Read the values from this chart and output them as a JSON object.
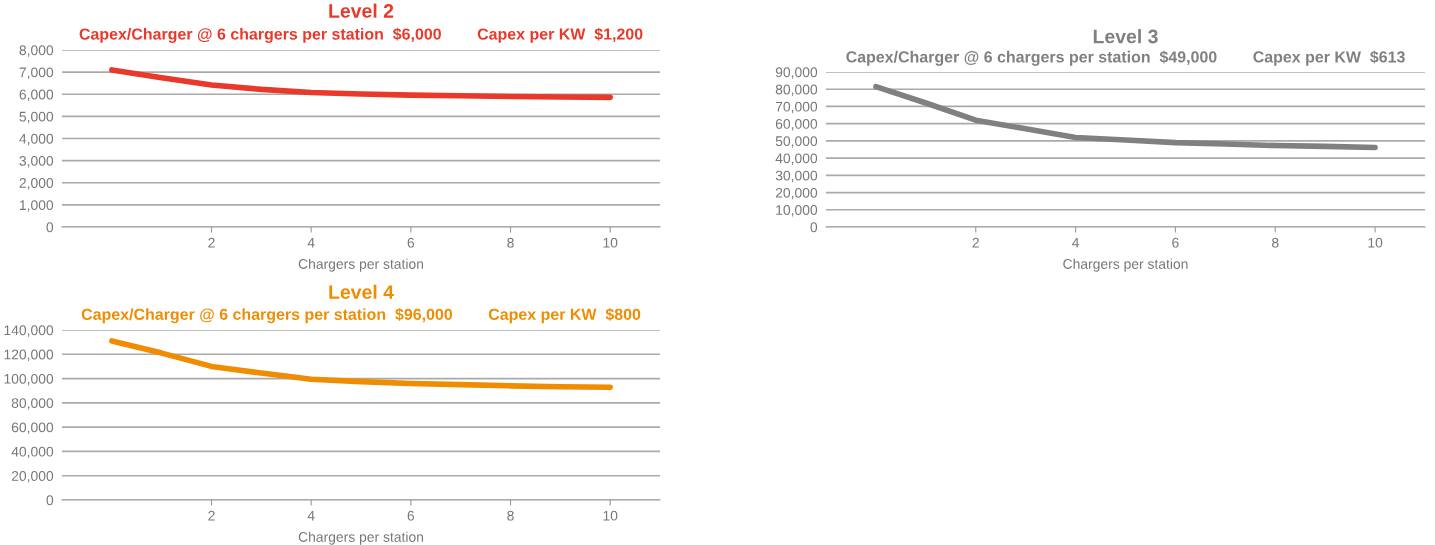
{
  "chart_data": [
    {
      "type": "line",
      "title": "Level 2",
      "subtitle": "Capex/Charger @ 6 chargers per station  $6,000        Capex per KW  $1,200",
      "xlabel": "Chargers per station",
      "x": [
        0,
        1,
        2,
        3,
        4,
        5,
        6,
        7,
        8,
        9,
        10
      ],
      "xlim": [
        -1,
        11
      ],
      "xticks": [
        2,
        4,
        6,
        8,
        10
      ],
      "ylim": [
        0,
        8000
      ],
      "yticks": [
        {
          "value": 0,
          "label": "0"
        },
        {
          "value": 1000,
          "label": "1,000"
        },
        {
          "value": 2000,
          "label": "2,000"
        },
        {
          "value": 3000,
          "label": "3,000"
        },
        {
          "value": 4000,
          "label": "4,000"
        },
        {
          "value": 5000,
          "label": "5,000"
        },
        {
          "value": 6000,
          "label": "6,000"
        },
        {
          "value": 7000,
          "label": "7,000"
        },
        {
          "value": 8000,
          "label": "8,000"
        }
      ],
      "grid": "y",
      "series": [
        {
          "color": "#e8392b",
          "values": [
            7100,
            6750,
            6420,
            6220,
            6080,
            6010,
            5960,
            5930,
            5900,
            5880,
            5860
          ]
        }
      ]
    },
    {
      "type": "line",
      "title": "Level 3",
      "subtitle": "Capex/Charger @ 6 chargers per station  $49,000        Capex per KW  $613",
      "xlabel": "Chargers per station",
      "x": [
        0,
        1,
        2,
        3,
        4,
        5,
        6,
        7,
        8,
        9,
        10
      ],
      "xlim": [
        -1,
        11
      ],
      "xticks": [
        2,
        4,
        6,
        8,
        10
      ],
      "ylim": [
        0,
        90000
      ],
      "yticks": [
        {
          "value": 0,
          "label": "0"
        },
        {
          "value": 10000,
          "label": "10,000"
        },
        {
          "value": 20000,
          "label": "20,000"
        },
        {
          "value": 30000,
          "label": "30,000"
        },
        {
          "value": 40000,
          "label": "40,000"
        },
        {
          "value": 50000,
          "label": "50,000"
        },
        {
          "value": 60000,
          "label": "60,000"
        },
        {
          "value": 70000,
          "label": "70,000"
        },
        {
          "value": 80000,
          "label": "80,000"
        },
        {
          "value": 90000,
          "label": "90,000"
        }
      ],
      "grid": "y",
      "series": [
        {
          "color": "#808080",
          "values": [
            81500,
            72000,
            62000,
            57000,
            52000,
            50500,
            49000,
            48200,
            47300,
            46800,
            46200
          ]
        }
      ]
    },
    {
      "type": "line",
      "title": "Level 4",
      "subtitle": "Capex/Charger @ 6 chargers per station  $96,000        Capex per KW  $800",
      "xlabel": "Chargers per station",
      "x": [
        0,
        1,
        2,
        3,
        4,
        5,
        6,
        7,
        8,
        9,
        10
      ],
      "xlim": [
        -1,
        11
      ],
      "xticks": [
        2,
        4,
        6,
        8,
        10
      ],
      "ylim": [
        0,
        140000
      ],
      "yticks": [
        {
          "value": 0,
          "label": "0"
        },
        {
          "value": 20000,
          "label": "20,000"
        },
        {
          "value": 40000,
          "label": "40,000"
        },
        {
          "value": 60000,
          "label": "60,000"
        },
        {
          "value": 80000,
          "label": "80,000"
        },
        {
          "value": 100000,
          "label": "100,000"
        },
        {
          "value": 120000,
          "label": "120,000"
        },
        {
          "value": 140000,
          "label": "140,000"
        }
      ],
      "grid": "y",
      "series": [
        {
          "color": "#f08c00",
          "values": [
            131000,
            121000,
            110000,
            104500,
            99500,
            97500,
            96000,
            95000,
            94000,
            93300,
            92800
          ]
        }
      ]
    }
  ]
}
